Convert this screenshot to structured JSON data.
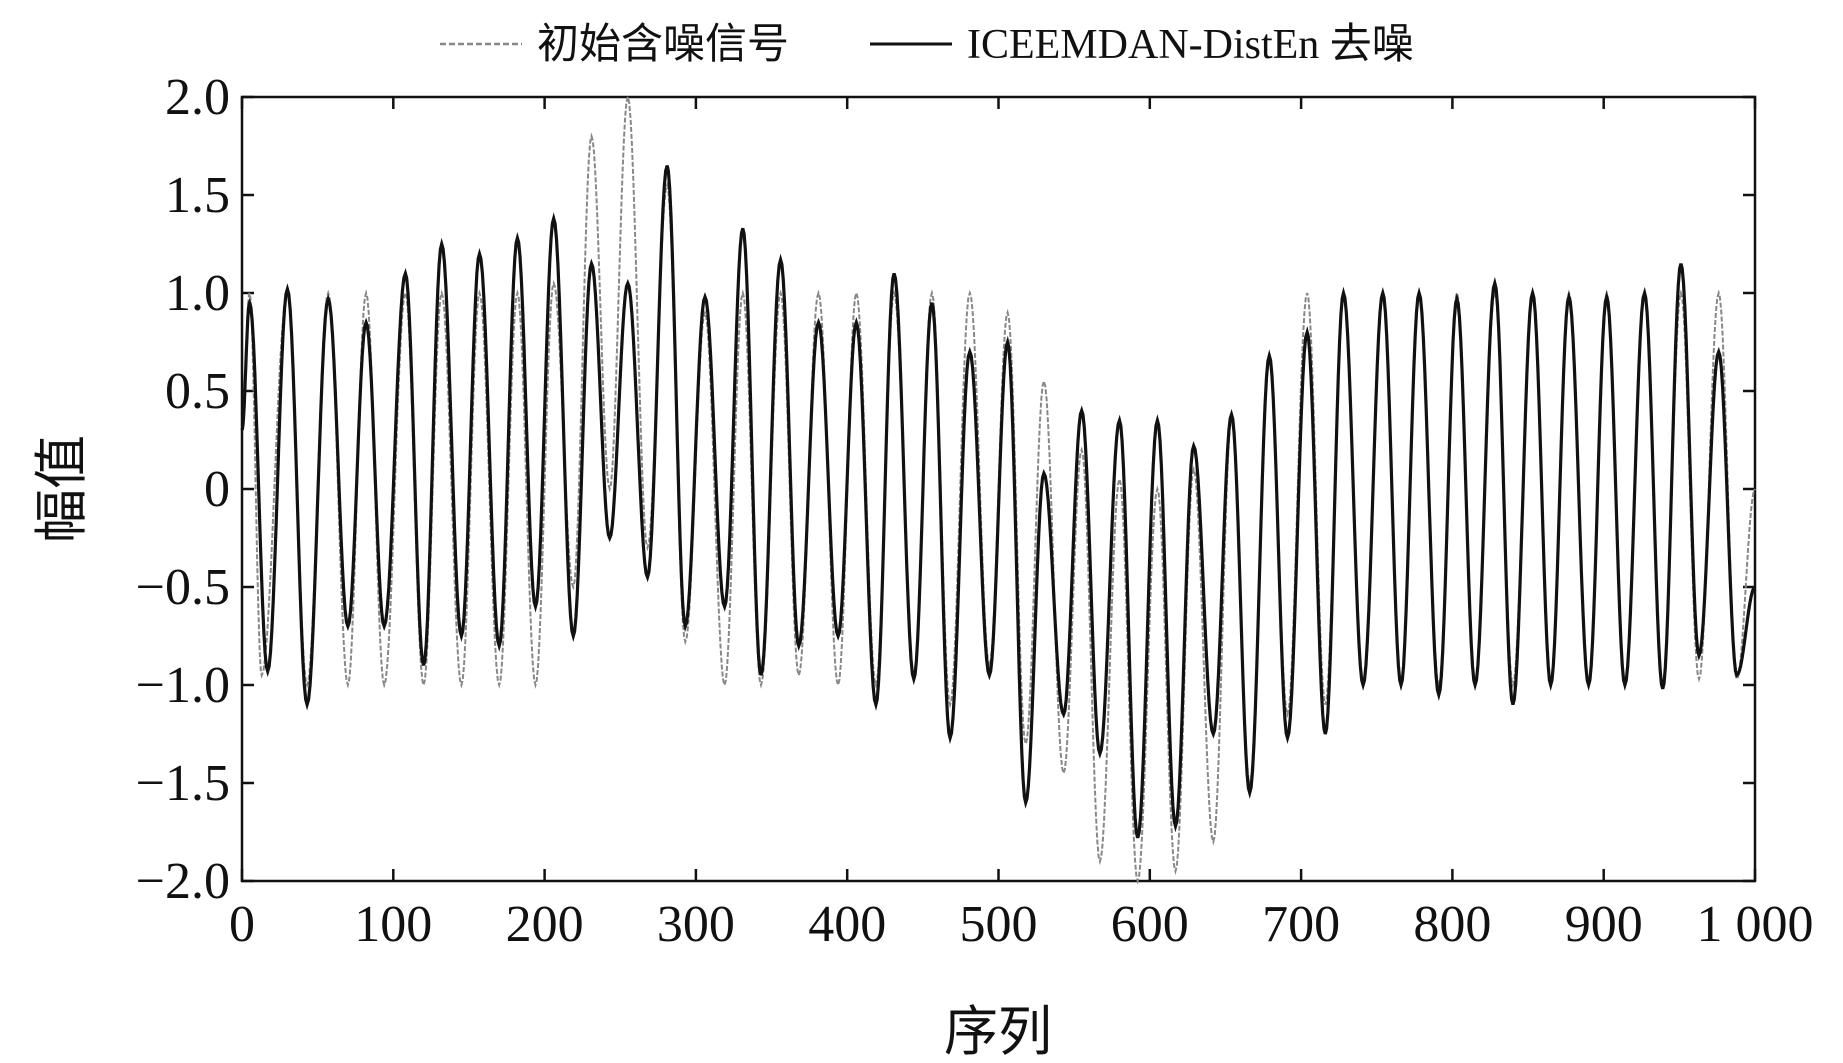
{
  "chart_data": {
    "type": "line",
    "xlabel": "序列",
    "ylabel": "幅值",
    "xlim": [
      0,
      1000
    ],
    "ylim": [
      -2.0,
      2.0
    ],
    "x_ticks": [
      {
        "value": 0,
        "label": "0"
      },
      {
        "value": 100,
        "label": "100"
      },
      {
        "value": 200,
        "label": "200"
      },
      {
        "value": 300,
        "label": "300"
      },
      {
        "value": 400,
        "label": "400"
      },
      {
        "value": 500,
        "label": "500"
      },
      {
        "value": 600,
        "label": "600"
      },
      {
        "value": 700,
        "label": "700"
      },
      {
        "value": 800,
        "label": "800"
      },
      {
        "value": 900,
        "label": "900"
      },
      {
        "value": 1000,
        "label": "1 000"
      }
    ],
    "y_ticks": [
      {
        "value": 2.0,
        "label": "2.0"
      },
      {
        "value": 1.5,
        "label": "1.5"
      },
      {
        "value": 1.0,
        "label": "1.0"
      },
      {
        "value": 0.5,
        "label": "0.5"
      },
      {
        "value": 0,
        "label": "0"
      },
      {
        "value": -0.5,
        "label": "−0.5"
      },
      {
        "value": -1.0,
        "label": "−1.0"
      },
      {
        "value": -1.5,
        "label": "−1.5"
      },
      {
        "value": -2.0,
        "label": "−2.0"
      }
    ],
    "grid": false,
    "legend_position": "top",
    "series": [
      {
        "name": "初始含噪信号",
        "color": "#888888",
        "style": "dashed",
        "peaks": [
          [
            5,
            1.0
          ],
          [
            13,
            -0.95
          ],
          [
            30,
            1.0
          ],
          [
            43,
            -1.0
          ],
          [
            57,
            1.0
          ],
          [
            70,
            -1.0
          ],
          [
            82,
            1.0
          ],
          [
            94,
            -1.0
          ],
          [
            108,
            1.0
          ],
          [
            120,
            -1.0
          ],
          [
            132,
            1.0
          ],
          [
            145,
            -1.0
          ],
          [
            157,
            1.0
          ],
          [
            170,
            -1.0
          ],
          [
            182,
            1.0
          ],
          [
            194,
            -1.0
          ],
          [
            206,
            1.05
          ],
          [
            219,
            -0.5
          ],
          [
            231,
            1.8
          ],
          [
            243,
            0.0
          ],
          [
            255,
            2.0
          ],
          [
            268,
            -0.3
          ],
          [
            281,
            1.55
          ],
          [
            293,
            -0.78
          ],
          [
            306,
            0.9
          ],
          [
            319,
            -1.0
          ],
          [
            331,
            1.0
          ],
          [
            343,
            -1.0
          ],
          [
            356,
            1.0
          ],
          [
            368,
            -0.95
          ],
          [
            381,
            1.0
          ],
          [
            394,
            -1.0
          ],
          [
            406,
            1.0
          ],
          [
            419,
            -1.0
          ],
          [
            431,
            1.0
          ],
          [
            444,
            -0.95
          ],
          [
            456,
            1.0
          ],
          [
            468,
            -1.1
          ],
          [
            481,
            1.0
          ],
          [
            494,
            -0.9
          ],
          [
            506,
            0.9
          ],
          [
            518,
            -1.3
          ],
          [
            530,
            0.55
          ],
          [
            543,
            -1.45
          ],
          [
            555,
            0.2
          ],
          [
            567,
            -1.9
          ],
          [
            580,
            0.05
          ],
          [
            592,
            -2.0
          ],
          [
            605,
            0.0
          ],
          [
            617,
            -1.95
          ],
          [
            629,
            0.1
          ],
          [
            642,
            -1.8
          ],
          [
            654,
            0.35
          ],
          [
            666,
            -1.5
          ],
          [
            679,
            0.65
          ],
          [
            691,
            -1.15
          ],
          [
            704,
            1.0
          ],
          [
            716,
            -1.1
          ],
          [
            728,
            1.0
          ],
          [
            741,
            -1.0
          ],
          [
            754,
            1.0
          ],
          [
            766,
            -1.0
          ],
          [
            778,
            1.0
          ],
          [
            791,
            -1.0
          ],
          [
            803,
            1.0
          ],
          [
            815,
            -1.0
          ],
          [
            828,
            1.0
          ],
          [
            840,
            -1.0
          ],
          [
            853,
            1.0
          ],
          [
            865,
            -1.0
          ],
          [
            877,
            1.0
          ],
          [
            890,
            -1.0
          ],
          [
            902,
            1.0
          ],
          [
            914,
            -1.0
          ],
          [
            927,
            1.0
          ],
          [
            939,
            -1.0
          ],
          [
            951,
            1.0
          ],
          [
            963,
            -0.97
          ],
          [
            976,
            1.0
          ],
          [
            988,
            -0.97
          ],
          [
            1000,
            0.0
          ]
        ]
      },
      {
        "name": "ICEEMDAN-DistEn 去噪",
        "color": "#111111",
        "style": "solid",
        "peaks": [
          [
            5,
            0.95
          ],
          [
            17,
            -0.93
          ],
          [
            30,
            1.02
          ],
          [
            43,
            -1.1
          ],
          [
            57,
            0.97
          ],
          [
            70,
            -0.7
          ],
          [
            82,
            0.85
          ],
          [
            94,
            -0.7
          ],
          [
            108,
            1.1
          ],
          [
            120,
            -0.9
          ],
          [
            132,
            1.25
          ],
          [
            145,
            -0.75
          ],
          [
            157,
            1.2
          ],
          [
            170,
            -0.8
          ],
          [
            182,
            1.28
          ],
          [
            194,
            -0.6
          ],
          [
            206,
            1.38
          ],
          [
            219,
            -0.75
          ],
          [
            231,
            1.15
          ],
          [
            243,
            -0.25
          ],
          [
            255,
            1.05
          ],
          [
            268,
            -0.45
          ],
          [
            281,
            1.65
          ],
          [
            293,
            -0.7
          ],
          [
            306,
            0.98
          ],
          [
            319,
            -0.6
          ],
          [
            331,
            1.33
          ],
          [
            343,
            -0.95
          ],
          [
            356,
            1.17
          ],
          [
            368,
            -0.8
          ],
          [
            381,
            0.85
          ],
          [
            394,
            -0.75
          ],
          [
            406,
            0.85
          ],
          [
            419,
            -1.1
          ],
          [
            431,
            1.1
          ],
          [
            444,
            -0.97
          ],
          [
            456,
            0.95
          ],
          [
            468,
            -1.27
          ],
          [
            481,
            0.7
          ],
          [
            494,
            -0.95
          ],
          [
            506,
            0.75
          ],
          [
            518,
            -1.6
          ],
          [
            530,
            0.08
          ],
          [
            543,
            -1.15
          ],
          [
            555,
            0.4
          ],
          [
            567,
            -1.35
          ],
          [
            580,
            0.35
          ],
          [
            592,
            -1.78
          ],
          [
            605,
            0.35
          ],
          [
            617,
            -1.72
          ],
          [
            629,
            0.22
          ],
          [
            642,
            -1.25
          ],
          [
            654,
            0.38
          ],
          [
            666,
            -1.55
          ],
          [
            679,
            0.68
          ],
          [
            691,
            -1.27
          ],
          [
            704,
            0.8
          ],
          [
            716,
            -1.25
          ],
          [
            728,
            1.0
          ],
          [
            741,
            -1.0
          ],
          [
            754,
            1.0
          ],
          [
            766,
            -1.0
          ],
          [
            778,
            1.0
          ],
          [
            791,
            -1.05
          ],
          [
            803,
            0.97
          ],
          [
            815,
            -1.0
          ],
          [
            828,
            1.05
          ],
          [
            840,
            -1.1
          ],
          [
            853,
            1.0
          ],
          [
            865,
            -1.0
          ],
          [
            877,
            0.98
          ],
          [
            890,
            -1.0
          ],
          [
            902,
            0.98
          ],
          [
            914,
            -1.0
          ],
          [
            927,
            1.0
          ],
          [
            939,
            -1.02
          ],
          [
            951,
            1.15
          ],
          [
            963,
            -0.85
          ],
          [
            976,
            0.7
          ],
          [
            988,
            -0.95
          ],
          [
            1000,
            -0.5
          ]
        ]
      }
    ]
  }
}
